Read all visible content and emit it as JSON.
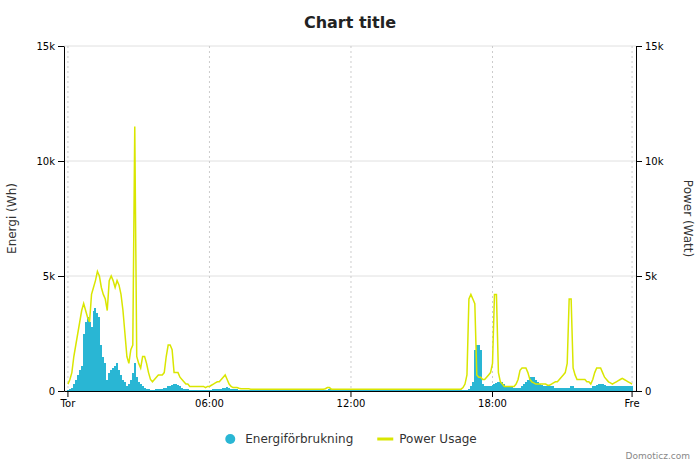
{
  "chart_data": {
    "type": "bar",
    "title": "Chart title",
    "ylabel": "Energi (Wh)",
    "y2label": "Power (Watt)",
    "annotations": [
      "Domoticz.com"
    ],
    "grid": true,
    "legend": "bottom",
    "ylim": [
      0,
      15000
    ],
    "yticks": [
      0,
      {
        "value": 5000,
        "label": "5k"
      },
      {
        "value": 10000,
        "label": "10k"
      },
      {
        "value": 15000,
        "label": "15k"
      }
    ],
    "y2lim": [
      0,
      15000
    ],
    "y2ticks": [
      0,
      {
        "value": 5000,
        "label": "5k"
      },
      {
        "value": 10000,
        "label": "10k"
      },
      {
        "value": 15000,
        "label": "15k"
      }
    ],
    "categories": [
      "Tor",
      null,
      null,
      null,
      null,
      null,
      null,
      null,
      null,
      null,
      null,
      null,
      null,
      null,
      null,
      null,
      null,
      null,
      null,
      null,
      null,
      null,
      null,
      null,
      null,
      null,
      null,
      null,
      null,
      null,
      null,
      null,
      null,
      null,
      null,
      null,
      null,
      null,
      null,
      null,
      null,
      null,
      null,
      null,
      null,
      null,
      null,
      null,
      null,
      null,
      null,
      null,
      null,
      null,
      null,
      null,
      null,
      null,
      null,
      null,
      null,
      null,
      null,
      null,
      null,
      null,
      null,
      null,
      null,
      null,
      null,
      null,
      "06:00",
      null,
      null,
      null,
      null,
      null,
      null,
      null,
      null,
      null,
      null,
      null,
      null,
      null,
      null,
      null,
      null,
      null,
      null,
      null,
      null,
      null,
      null,
      null,
      null,
      null,
      null,
      null,
      null,
      null,
      null,
      null,
      null,
      null,
      null,
      null,
      null,
      null,
      null,
      null,
      null,
      null,
      null,
      null,
      null,
      null,
      null,
      null,
      null,
      null,
      null,
      null,
      null,
      null,
      null,
      null,
      null,
      null,
      null,
      null,
      null,
      null,
      null,
      null,
      null,
      null,
      null,
      null,
      null,
      null,
      null,
      null,
      "12:00",
      null,
      null,
      null,
      null,
      null,
      null,
      null,
      null,
      null,
      null,
      null,
      null,
      null,
      null,
      null,
      null,
      null,
      null,
      null,
      null,
      null,
      null,
      null,
      null,
      null,
      null,
      null,
      null,
      null,
      null,
      null,
      null,
      null,
      null,
      null,
      null,
      null,
      null,
      null,
      null,
      null,
      null,
      null,
      null,
      null,
      null,
      null,
      null,
      null,
      null,
      null,
      null,
      null,
      null,
      null,
      null,
      null,
      null,
      null,
      null,
      null,
      null,
      null,
      null,
      null,
      null,
      null,
      null,
      null,
      null,
      null,
      "18:00",
      null,
      null,
      null,
      null,
      null,
      null,
      null,
      null,
      null,
      null,
      null,
      null,
      null,
      null,
      null,
      null,
      null,
      null,
      null,
      null,
      null,
      null,
      null,
      null,
      null,
      null,
      null,
      null,
      null,
      null,
      null,
      null,
      null,
      null,
      null,
      null,
      null,
      null,
      null,
      null,
      null,
      null,
      null,
      null,
      null,
      null,
      null,
      null,
      null,
      null,
      null,
      null,
      null,
      null,
      null,
      null,
      null,
      null,
      null,
      null,
      null,
      null,
      null,
      null,
      null,
      null,
      null,
      null,
      null,
      null,
      "Fre"
    ],
    "series": [
      {
        "name": "Energiförbrukning",
        "type": "bar",
        "color": "#29b6d4",
        "values": [
          50,
          80,
          150,
          300,
          500,
          700,
          900,
          1100,
          2500,
          3000,
          3200,
          3000,
          2800,
          3500,
          3600,
          3400,
          3200,
          2000,
          1500,
          1200,
          500,
          800,
          900,
          1000,
          1100,
          1200,
          900,
          700,
          500,
          400,
          200,
          300,
          500,
          800,
          1200,
          600,
          400,
          300,
          200,
          150,
          100,
          80,
          50,
          50,
          60,
          70,
          80,
          100,
          100,
          120,
          150,
          200,
          200,
          250,
          300,
          300,
          280,
          200,
          150,
          100,
          80,
          80,
          50,
          50,
          60,
          50,
          50,
          50,
          50,
          50,
          50,
          50,
          60,
          60,
          70,
          70,
          80,
          100,
          100,
          120,
          150,
          180,
          150,
          100,
          100,
          80,
          80,
          60,
          60,
          50,
          50,
          50,
          50,
          50,
          50,
          50,
          50,
          50,
          50,
          50,
          50,
          50,
          50,
          50,
          50,
          50,
          50,
          50,
          50,
          50,
          50,
          50,
          50,
          50,
          50,
          50,
          50,
          50,
          50,
          50,
          50,
          50,
          50,
          50,
          50,
          50,
          50,
          50,
          50,
          50,
          50,
          50,
          50,
          80,
          100,
          100,
          50,
          50,
          50,
          50,
          50,
          50,
          50,
          50,
          50,
          50,
          50,
          50,
          50,
          50,
          50,
          50,
          50,
          50,
          50,
          50,
          50,
          50,
          50,
          50,
          50,
          50,
          50,
          50,
          50,
          50,
          50,
          50,
          50,
          50,
          50,
          50,
          50,
          50,
          50,
          50,
          50,
          50,
          50,
          50,
          50,
          50,
          50,
          50,
          50,
          50,
          50,
          50,
          50,
          50,
          50,
          50,
          50,
          50,
          50,
          50,
          50,
          50,
          50,
          50,
          50,
          50,
          50,
          50,
          100,
          200,
          400,
          1800,
          2000,
          2000,
          1800,
          300,
          200,
          200,
          200,
          200,
          250,
          300,
          350,
          400,
          400,
          400,
          300,
          200,
          200,
          200,
          200,
          150,
          150,
          150,
          150,
          200,
          300,
          400,
          500,
          600,
          600,
          600,
          500,
          400,
          300,
          250,
          200,
          200,
          200,
          200,
          200,
          200,
          150,
          150,
          150,
          150,
          150,
          150,
          150,
          150,
          200,
          200,
          150,
          150,
          150,
          150,
          150,
          150,
          150,
          150,
          150,
          200,
          200,
          250,
          300,
          300,
          300,
          250,
          200,
          200,
          200,
          200,
          200,
          200,
          200,
          200,
          200,
          200,
          200,
          200,
          200,
          200
        ]
      },
      {
        "name": "Power Usage",
        "type": "line",
        "color": "#d9e600",
        "axis": "y2",
        "values": [
          300,
          500,
          800,
          1500,
          2000,
          2500,
          3000,
          3500,
          3800,
          3500,
          3200,
          3000,
          4200,
          4500,
          4800,
          5200,
          5000,
          4500,
          4200,
          4000,
          3500,
          4800,
          5000,
          4800,
          4500,
          4800,
          4600,
          4200,
          3500,
          2500,
          1500,
          1200,
          1800,
          2000,
          11500,
          1500,
          1200,
          1000,
          1500,
          1500,
          1200,
          800,
          500,
          400,
          500,
          600,
          700,
          700,
          700,
          800,
          1500,
          2000,
          2000,
          1800,
          800,
          800,
          800,
          600,
          500,
          400,
          300,
          300,
          200,
          200,
          200,
          200,
          200,
          200,
          200,
          200,
          150,
          200,
          200,
          250,
          300,
          350,
          400,
          400,
          500,
          600,
          700,
          500,
          300,
          200,
          150,
          150,
          150,
          120,
          100,
          100,
          100,
          100,
          100,
          80,
          80,
          80,
          80,
          80,
          80,
          80,
          80,
          80,
          80,
          80,
          80,
          80,
          80,
          80,
          80,
          80,
          80,
          80,
          80,
          80,
          80,
          80,
          80,
          80,
          80,
          80,
          80,
          80,
          80,
          80,
          80,
          80,
          80,
          80,
          80,
          80,
          80,
          100,
          150,
          150,
          80,
          80,
          80,
          80,
          80,
          80,
          80,
          80,
          80,
          80,
          80,
          80,
          80,
          80,
          80,
          80,
          80,
          80,
          80,
          80,
          80,
          80,
          80,
          80,
          80,
          80,
          80,
          80,
          80,
          80,
          80,
          80,
          80,
          80,
          80,
          80,
          80,
          80,
          80,
          80,
          80,
          80,
          80,
          80,
          80,
          80,
          80,
          80,
          80,
          80,
          80,
          80,
          80,
          80,
          80,
          80,
          80,
          80,
          80,
          80,
          80,
          80,
          80,
          80,
          80,
          80,
          80,
          150,
          300,
          700,
          4000,
          4200,
          4000,
          3800,
          700,
          600,
          600,
          500,
          500,
          600,
          700,
          800,
          1200,
          4200,
          4200,
          800,
          400,
          300,
          200,
          200,
          200,
          200,
          200,
          200,
          300,
          500,
          900,
          1000,
          1000,
          1000,
          800,
          500,
          400,
          350,
          300,
          300,
          300,
          300,
          300,
          300,
          250,
          250,
          300,
          350,
          400,
          400,
          500,
          600,
          700,
          800,
          1200,
          4000,
          4000,
          1000,
          700,
          500,
          500,
          500,
          500,
          500,
          400,
          400,
          300,
          500,
          800,
          1000,
          1000,
          1000,
          800,
          600,
          500,
          400,
          350,
          300,
          350,
          400,
          450,
          500,
          550,
          500,
          450,
          400,
          350,
          300
        ]
      }
    ]
  }
}
